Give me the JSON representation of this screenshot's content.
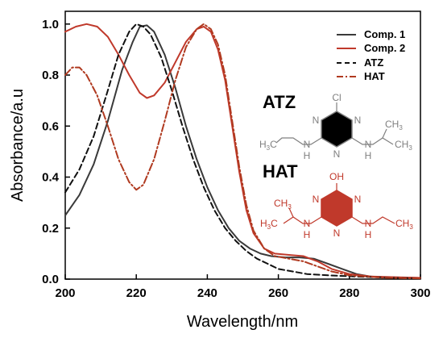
{
  "chart_data": {
    "type": "line",
    "title": "",
    "xlabel": "Wavelength/nm",
    "ylabel": "Absorbance/a.u",
    "xlim": [
      200,
      300
    ],
    "ylim": [
      0,
      1.05
    ],
    "xticks": [
      200,
      220,
      240,
      260,
      280,
      300
    ],
    "yticks": [
      0.0,
      0.2,
      0.4,
      0.6,
      0.8,
      1.0
    ],
    "xtick_labels": [
      "200",
      "220",
      "240",
      "260",
      "280",
      "300"
    ],
    "ytick_labels": [
      "0.0",
      "0.2",
      "0.4",
      "0.6",
      "0.8",
      "1.0"
    ],
    "grid": false,
    "legend_position": "top-right",
    "series": [
      {
        "name": "Comp. 1",
        "color": "#3a3a3a",
        "style": "solid",
        "points": [
          [
            200,
            0.25
          ],
          [
            204,
            0.33
          ],
          [
            208,
            0.45
          ],
          [
            212,
            0.62
          ],
          [
            216,
            0.82
          ],
          [
            219,
            0.93
          ],
          [
            221,
            0.99
          ],
          [
            223,
            0.995
          ],
          [
            225,
            0.97
          ],
          [
            228,
            0.88
          ],
          [
            231,
            0.75
          ],
          [
            234,
            0.6
          ],
          [
            237,
            0.47
          ],
          [
            240,
            0.36
          ],
          [
            243,
            0.27
          ],
          [
            246,
            0.2
          ],
          [
            249,
            0.15
          ],
          [
            252,
            0.12
          ],
          [
            255,
            0.1
          ],
          [
            258,
            0.09
          ],
          [
            262,
            0.085
          ],
          [
            266,
            0.085
          ],
          [
            270,
            0.08
          ],
          [
            274,
            0.06
          ],
          [
            278,
            0.04
          ],
          [
            282,
            0.02
          ],
          [
            286,
            0.01
          ],
          [
            292,
            0.005
          ],
          [
            300,
            0.003
          ]
        ]
      },
      {
        "name": "Comp. 2",
        "color": "#c0392b",
        "style": "solid",
        "points": [
          [
            200,
            0.97
          ],
          [
            203,
            0.99
          ],
          [
            206,
            1.0
          ],
          [
            209,
            0.99
          ],
          [
            212,
            0.95
          ],
          [
            215,
            0.88
          ],
          [
            218,
            0.8
          ],
          [
            221,
            0.73
          ],
          [
            223,
            0.71
          ],
          [
            225,
            0.72
          ],
          [
            228,
            0.77
          ],
          [
            231,
            0.85
          ],
          [
            234,
            0.93
          ],
          [
            237,
            0.98
          ],
          [
            239,
            0.99
          ],
          [
            241,
            0.97
          ],
          [
            243,
            0.9
          ],
          [
            245,
            0.78
          ],
          [
            247,
            0.6
          ],
          [
            249,
            0.42
          ],
          [
            251,
            0.27
          ],
          [
            253,
            0.18
          ],
          [
            256,
            0.12
          ],
          [
            259,
            0.1
          ],
          [
            263,
            0.095
          ],
          [
            267,
            0.09
          ],
          [
            271,
            0.07
          ],
          [
            275,
            0.04
          ],
          [
            280,
            0.02
          ],
          [
            286,
            0.01
          ],
          [
            300,
            0.005
          ]
        ]
      },
      {
        "name": "ATZ",
        "color": "#111111",
        "style": "dashed",
        "points": [
          [
            200,
            0.34
          ],
          [
            204,
            0.43
          ],
          [
            208,
            0.56
          ],
          [
            212,
            0.74
          ],
          [
            215,
            0.88
          ],
          [
            218,
            0.97
          ],
          [
            220,
            1.0
          ],
          [
            222,
            0.99
          ],
          [
            224,
            0.96
          ],
          [
            227,
            0.87
          ],
          [
            230,
            0.74
          ],
          [
            233,
            0.6
          ],
          [
            236,
            0.47
          ],
          [
            239,
            0.36
          ],
          [
            242,
            0.27
          ],
          [
            245,
            0.2
          ],
          [
            248,
            0.15
          ],
          [
            251,
            0.11
          ],
          [
            254,
            0.08
          ],
          [
            257,
            0.06
          ],
          [
            260,
            0.04
          ],
          [
            264,
            0.03
          ],
          [
            268,
            0.02
          ],
          [
            274,
            0.015
          ],
          [
            282,
            0.01
          ],
          [
            292,
            0.005
          ],
          [
            300,
            0.003
          ]
        ]
      },
      {
        "name": "HAT",
        "color": "#b03a20",
        "style": "dashdot",
        "points": [
          [
            200,
            0.8
          ],
          [
            202,
            0.83
          ],
          [
            204,
            0.83
          ],
          [
            206,
            0.8
          ],
          [
            209,
            0.72
          ],
          [
            212,
            0.6
          ],
          [
            215,
            0.47
          ],
          [
            218,
            0.38
          ],
          [
            220,
            0.35
          ],
          [
            222,
            0.37
          ],
          [
            225,
            0.47
          ],
          [
            228,
            0.62
          ],
          [
            231,
            0.78
          ],
          [
            234,
            0.91
          ],
          [
            237,
            0.98
          ],
          [
            239,
            1.0
          ],
          [
            241,
            0.98
          ],
          [
            243,
            0.92
          ],
          [
            245,
            0.8
          ],
          [
            247,
            0.62
          ],
          [
            249,
            0.44
          ],
          [
            251,
            0.29
          ],
          [
            253,
            0.19
          ],
          [
            256,
            0.12
          ],
          [
            259,
            0.09
          ],
          [
            263,
            0.08
          ],
          [
            267,
            0.07
          ],
          [
            271,
            0.05
          ],
          [
            275,
            0.03
          ],
          [
            280,
            0.015
          ],
          [
            290,
            0.005
          ],
          [
            300,
            0.003
          ]
        ]
      }
    ],
    "molecules": [
      {
        "name": "ATZ",
        "ring_color": "#000000",
        "text_color": "#808080",
        "top_substituent": "Cl",
        "ring_nitrogens": [
          "N",
          "N",
          "N"
        ],
        "left_amine": "N",
        "left_amine_h": "H",
        "right_amine": "N",
        "right_amine_h": "H",
        "left_chain_end": "H",
        "left_chain_end_c": "C",
        "left_chain_sub": "3",
        "right_chain_top": "CH",
        "right_chain_top_sub": "3",
        "right_chain_bottom": "CH",
        "right_chain_bottom_sub": "3"
      },
      {
        "name": "HAT",
        "ring_color": "#c0392b",
        "text_color": "#c0392b",
        "top_substituent": "OH",
        "ring_nitrogens": [
          "N",
          "N",
          "N"
        ],
        "left_amine": "N",
        "left_amine_h": "H",
        "right_amine": "N",
        "right_amine_h": "H",
        "left_chain_top": "CH",
        "left_chain_top_sub": "3",
        "left_chain_bottom": "H",
        "left_chain_bottom_c": "C",
        "left_chain_bottom_sub": "3",
        "right_chain_end": "CH",
        "right_chain_end_sub": "3"
      }
    ]
  }
}
